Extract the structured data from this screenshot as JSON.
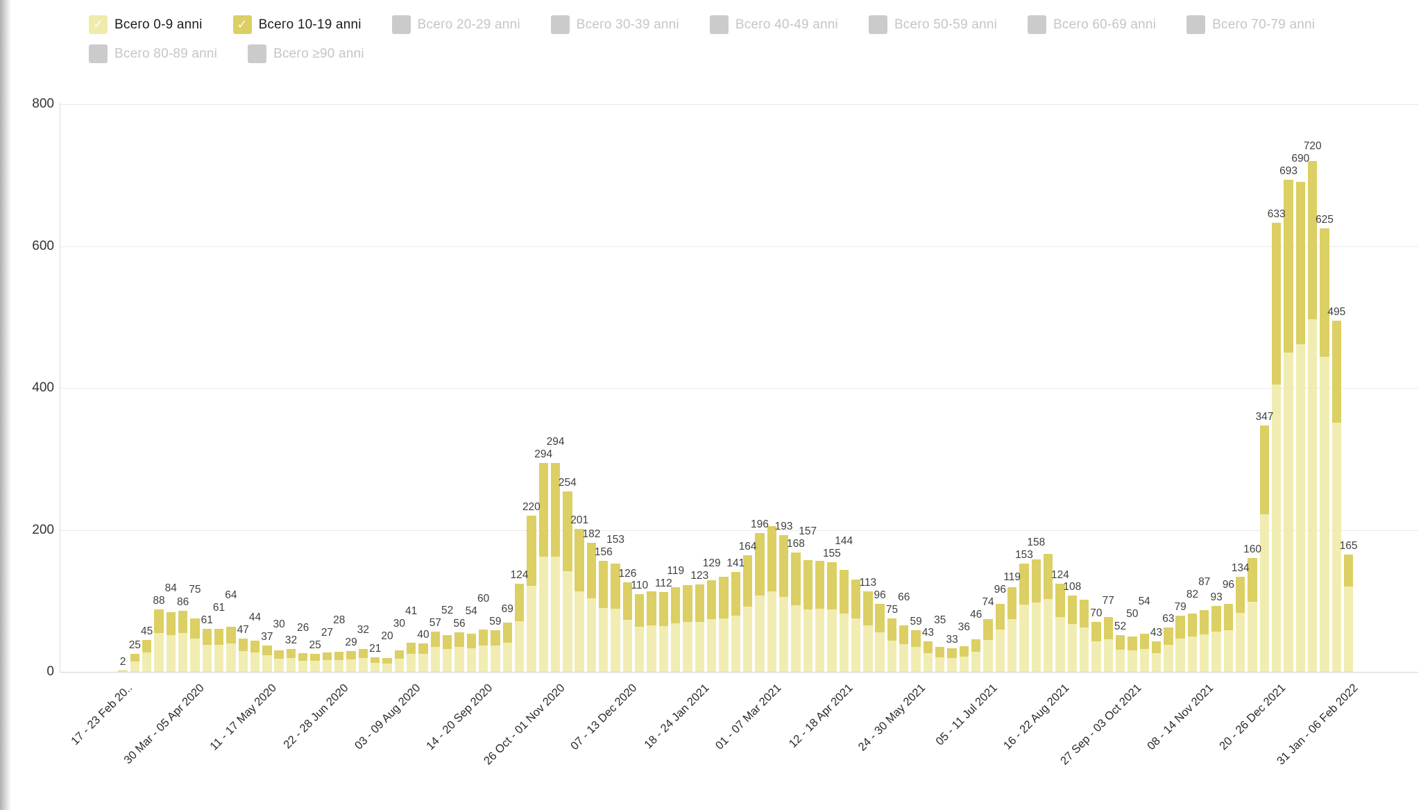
{
  "legend": {
    "checkmark_glyph": "✓",
    "items": [
      {
        "label": "Всего 0-9 anni",
        "checked": true,
        "color": "#f0ebab"
      },
      {
        "label": "Всего 10-19 anni",
        "checked": true,
        "color": "#dccf63"
      },
      {
        "label": "Всего 20-29 anni",
        "checked": false,
        "color": "#cbcbcb"
      },
      {
        "label": "Всего 30-39 anni",
        "checked": false,
        "color": "#cbcbcb"
      },
      {
        "label": "Всего 40-49 anni",
        "checked": false,
        "color": "#cbcbcb"
      },
      {
        "label": "Всего 50-59 anni",
        "checked": false,
        "color": "#cbcbcb"
      },
      {
        "label": "Всего 60-69 anni",
        "checked": false,
        "color": "#cbcbcb"
      },
      {
        "label": "Всего 70-79 anni",
        "checked": false,
        "color": "#cbcbcb"
      },
      {
        "label": "Всего 80-89 anni",
        "checked": false,
        "color": "#cbcbcb"
      },
      {
        "label": "Всего ≥90 anni",
        "checked": false,
        "color": "#cbcbcb"
      }
    ]
  },
  "chart_data": {
    "type": "bar",
    "stacked": true,
    "grid": true,
    "legend_position": "top",
    "ylim": [
      0,
      800
    ],
    "y_ticks": [
      0,
      200,
      400,
      600,
      800
    ],
    "x_tick_every_n_bars": 6,
    "x_tick_labels": [
      "17 - 23 Feb 20..",
      "30 Mar - 05 Apr 2020",
      "11 - 17 May 2020",
      "22 - 28 Jun 2020",
      "03 - 09 Aug 2020",
      "14 - 20 Sep 2020",
      "26 Oct - 01 Nov 2020",
      "07 - 13 Dec 2020",
      "18 - 24 Jan 2021",
      "01 - 07 Mar 2021",
      "12 - 18 Apr 2021",
      "24 - 30 May 2021",
      "05 - 11 Jul 2021",
      "16 - 22 Aug 2021",
      "27 Sep - 03 Oct 2021",
      "08 - 14 Nov 2021",
      "20 - 26 Dec 2021",
      "31 Jan - 06 Feb 2022"
    ],
    "totals": [
      2,
      25,
      45,
      88,
      84,
      86,
      75,
      61,
      61,
      64,
      47,
      44,
      37,
      30,
      32,
      26,
      25,
      27,
      28,
      29,
      32,
      21,
      20,
      30,
      41,
      40,
      57,
      52,
      56,
      54,
      60,
      59,
      69,
      124,
      220,
      294,
      294,
      254,
      201,
      182,
      156,
      153,
      126,
      110,
      113,
      112,
      119,
      122,
      123,
      129,
      134,
      141,
      164,
      196,
      205,
      193,
      168,
      157,
      156,
      155,
      144,
      130,
      113,
      96,
      75,
      66,
      59,
      43,
      35,
      33,
      36,
      46,
      74,
      96,
      119,
      153,
      158,
      166,
      124,
      108,
      102,
      70,
      77,
      52,
      50,
      54,
      43,
      63,
      79,
      82,
      87,
      93,
      96,
      134,
      160,
      347,
      633,
      693,
      690,
      720,
      625,
      495,
      165
    ],
    "bar_labels": [
      "2",
      "25",
      "45",
      "88",
      "84",
      "86",
      "75",
      "61",
      "61",
      "64",
      "47",
      "44",
      "37",
      "30",
      "32",
      "26",
      "25",
      "27",
      "28",
      "29",
      "32",
      "21",
      "20",
      "30",
      "41",
      "40",
      "57",
      "52",
      "56",
      "54",
      "60",
      "59",
      "69",
      "124",
      "220",
      "294",
      "294",
      "254",
      "201",
      "182",
      "156",
      "153",
      "126",
      "110",
      "",
      "112",
      "119",
      "",
      "123",
      "129",
      "",
      "141",
      "164",
      "196",
      "",
      "193",
      "168",
      "157",
      "",
      "155",
      "144",
      "",
      "113",
      "96",
      "75",
      "66",
      "59",
      "43",
      "35",
      "33",
      "36",
      "46",
      "74",
      "96",
      "119",
      "153",
      "158",
      "",
      "124",
      "108",
      "",
      "70",
      "77",
      "52",
      "50",
      "54",
      "43",
      "63",
      "79",
      "82",
      "87",
      "93",
      "96",
      "134",
      "160",
      "347",
      "633",
      "693",
      "690",
      "720",
      "625",
      "495",
      "165"
    ],
    "series": [
      {
        "name": "Всего 0-9 anni",
        "color": "#f0ebab",
        "values": [
          1,
          15,
          27,
          55,
          52,
          55,
          47,
          38,
          38,
          40,
          29,
          27,
          23,
          19,
          20,
          16,
          16,
          17,
          17,
          18,
          20,
          13,
          12,
          19,
          25,
          25,
          35,
          32,
          35,
          33,
          37,
          37,
          41,
          71,
          121,
          162,
          162,
          142,
          113,
          104,
          90,
          89,
          73,
          64,
          66,
          65,
          68,
          70,
          70,
          74,
          75,
          79,
          92,
          108,
          113,
          106,
          94,
          88,
          89,
          88,
          82,
          75,
          66,
          56,
          44,
          39,
          35,
          26,
          21,
          20,
          22,
          28,
          45,
          60,
          74,
          95,
          98,
          103,
          77,
          67,
          63,
          43,
          46,
          31,
          30,
          32,
          26,
          38,
          47,
          50,
          53,
          57,
          59,
          83,
          99,
          222,
          405,
          450,
          462,
          497,
          444,
          351,
          120
        ]
      },
      {
        "name": "Всего 10-19 anni",
        "color": "#dccf63",
        "values": [
          1,
          10,
          18,
          33,
          32,
          31,
          28,
          23,
          23,
          24,
          18,
          17,
          14,
          11,
          12,
          10,
          9,
          10,
          11,
          11,
          12,
          8,
          8,
          11,
          16,
          15,
          22,
          20,
          21,
          21,
          23,
          22,
          28,
          53,
          99,
          132,
          132,
          112,
          88,
          78,
          66,
          64,
          53,
          46,
          47,
          47,
          51,
          52,
          53,
          55,
          59,
          62,
          72,
          88,
          92,
          87,
          74,
          69,
          67,
          67,
          62,
          55,
          47,
          40,
          31,
          27,
          24,
          17,
          14,
          13,
          14,
          18,
          29,
          36,
          45,
          58,
          60,
          63,
          47,
          41,
          39,
          27,
          31,
          21,
          20,
          22,
          17,
          25,
          32,
          32,
          34,
          36,
          37,
          51,
          61,
          125,
          228,
          243,
          228,
          223,
          181,
          144,
          45
        ]
      }
    ]
  },
  "colors": {
    "series_0_9": "#f0ebab",
    "series_10_19": "#dccf63",
    "legend_unchecked": "#cbcbcb",
    "legend_text_active": "#1b1b1b",
    "legend_text_inactive": "#c5c5c5",
    "gridline": "#e9e9e9",
    "axis_line": "#d2d2d2",
    "value_label_text": "#3e3e3e",
    "axis_label_text": "#333333",
    "background": "#ffffff"
  }
}
